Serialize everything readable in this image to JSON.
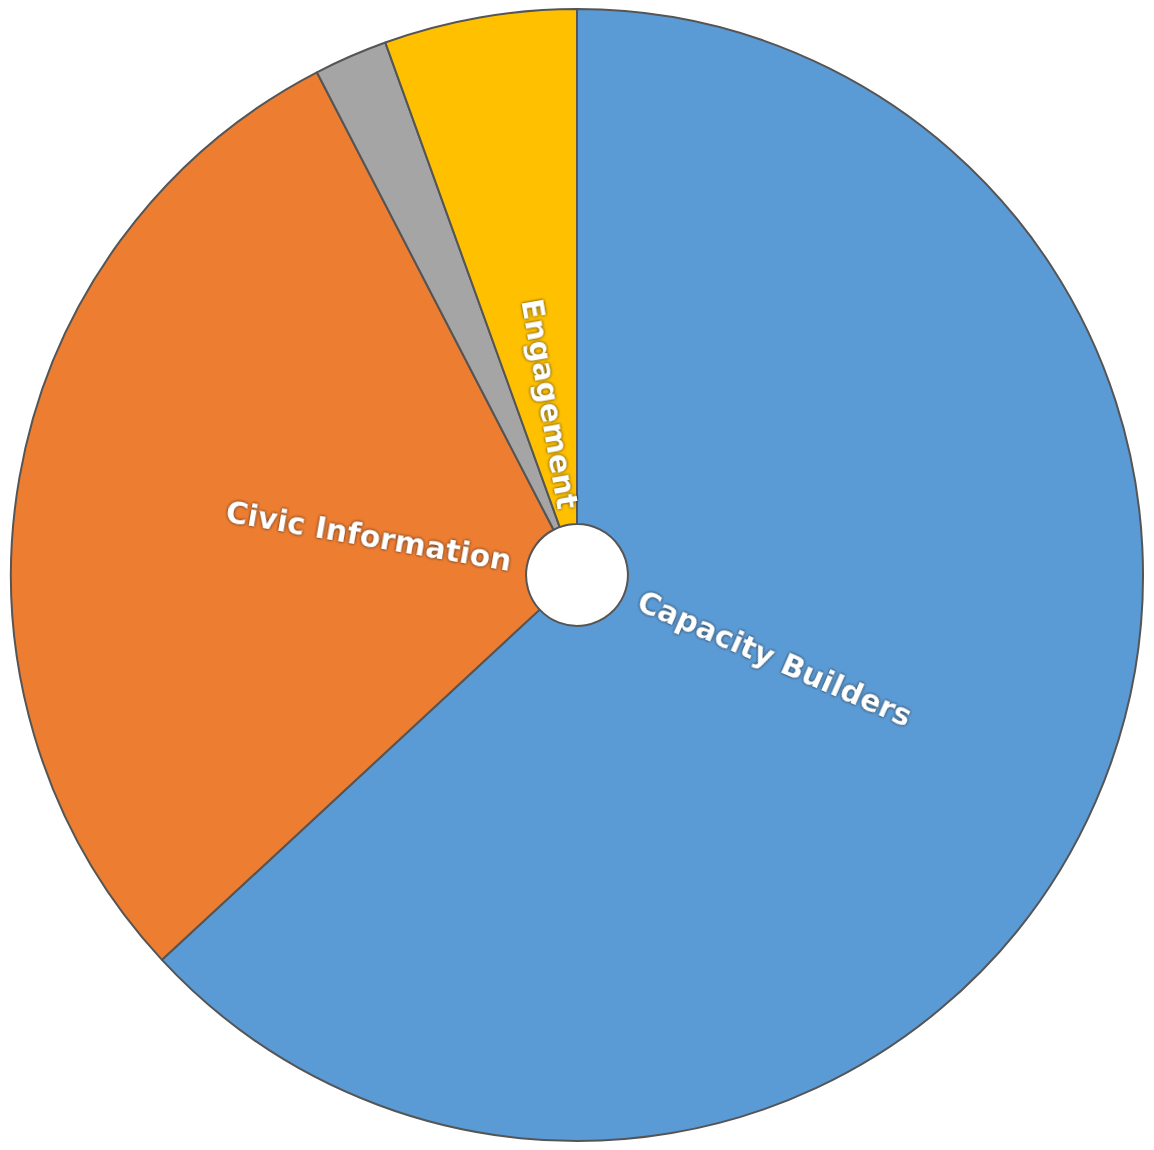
{
  "chart_data": {
    "type": "pie",
    "categories": [
      "Capacity Builders",
      "Civic Information",
      null,
      "Engagement"
    ],
    "values": [
      63.1,
      29.3,
      2.1,
      5.5
    ],
    "colors": [
      "#5b9bd5",
      "#ed7d31",
      "#a5a5a5",
      "#ffc000"
    ],
    "legend": false
  }
}
